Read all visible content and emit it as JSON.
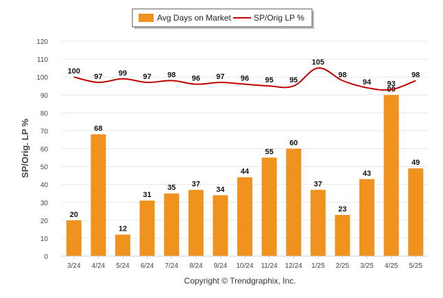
{
  "chart_data": {
    "type": "bar",
    "categories": [
      "3/24",
      "4/24",
      "5/24",
      "6/24",
      "7/24",
      "8/24",
      "9/24",
      "10/24",
      "11/24",
      "12/24",
      "1/25",
      "2/25",
      "3/25",
      "4/25",
      "5/25"
    ],
    "series": [
      {
        "name": "Avg Days on Market",
        "type": "bar",
        "color": "#f0921e",
        "values": [
          20,
          68,
          12,
          31,
          35,
          37,
          34,
          44,
          55,
          60,
          37,
          23,
          43,
          90,
          49
        ]
      },
      {
        "name": "SP/Orig LP %",
        "type": "line",
        "color": "#c00000",
        "values": [
          100,
          97,
          99,
          97,
          98,
          96,
          97,
          96,
          95,
          95,
          105,
          98,
          94,
          93,
          98
        ]
      }
    ],
    "ylabel": "SP/Orig. LP %",
    "ylim": [
      0,
      120
    ],
    "yticks": [
      0,
      10,
      20,
      30,
      40,
      50,
      60,
      70,
      80,
      90,
      100,
      110,
      120
    ],
    "grid": true,
    "legend_position": "top-center",
    "footer": "Copyright © Trendgraphix, Inc."
  }
}
